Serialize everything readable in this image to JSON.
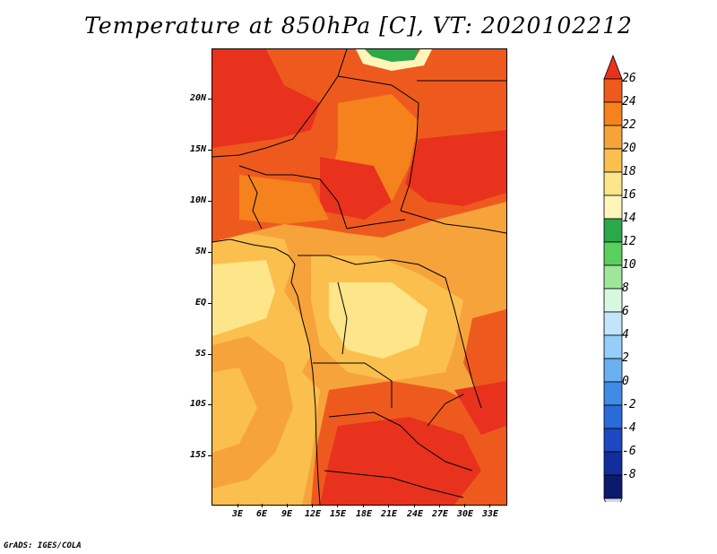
{
  "title": "Temperature at 850hPa [C], VT: 2020102212",
  "credit": "GrADS: IGES/COLA",
  "latitude_labels": [
    "20N",
    "15N",
    "10N",
    "5N",
    "EQ",
    "5S",
    "10S",
    "15S"
  ],
  "longitude_labels": [
    "3E",
    "6E",
    "9E",
    "12E",
    "15E",
    "18E",
    "21E",
    "24E",
    "27E",
    "30E",
    "33E"
  ],
  "colorbar": {
    "labels": [
      "26",
      "24",
      "22",
      "20",
      "18",
      "16",
      "14",
      "12",
      "10",
      "8",
      "6",
      "4",
      "2",
      "0",
      "-2",
      "-4",
      "-6",
      "-8"
    ],
    "colors": [
      "#e8321e",
      "#ee5a1e",
      "#f5821c",
      "#f7a33c",
      "#fbbf4e",
      "#fde58a",
      "#fdf5ba",
      "#2aa84a",
      "#59cf5e",
      "#9ee79a",
      "#d8f7e0",
      "#c3e5fb",
      "#95cef8",
      "#6aaff0",
      "#3f8be6",
      "#2a6ad9",
      "#1c48c2",
      "#132e9c",
      "#0c1a6e"
    ],
    "min_arrow_color": "#d3d4f5"
  }
}
